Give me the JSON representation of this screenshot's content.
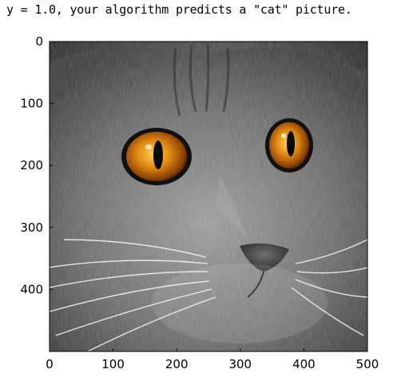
{
  "output": {
    "text": "y = 1.0, your algorithm predicts a \"cat\" picture."
  },
  "figure": {
    "image_description_icon": "cat-face-photo",
    "colors": {
      "eye": "#e08a12",
      "fur": "#6a6a6a"
    },
    "x_ticks": [
      0,
      100,
      200,
      300,
      400,
      500
    ],
    "y_ticks": [
      0,
      100,
      200,
      300,
      400
    ],
    "x_range": [
      0,
      500
    ],
    "y_range": [
      0,
      500
    ]
  }
}
